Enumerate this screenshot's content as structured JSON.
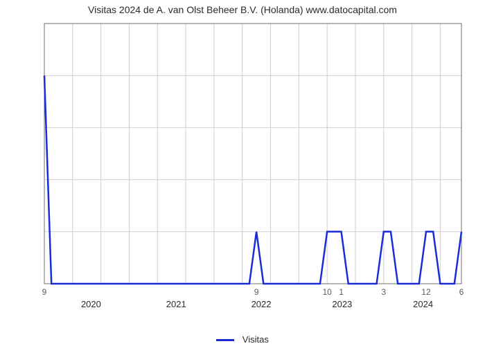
{
  "chart": {
    "type": "line",
    "title": "Visitas 2024 de A. van Olst Beheer B.V. (Holanda) www.datocapital.com",
    "title_fontsize": 14,
    "title_color": "#2a2a2a",
    "background_color": "#ffffff",
    "plot_border_color": "#6d6d6d",
    "grid_color": "#cfcfcf",
    "grid_width": 1,
    "line_color": "#1a2bd8",
    "line_width": 2.5,
    "axis_label_color": "#5a5a5a",
    "axis_label_fontsize": 12,
    "x_year_label_color": "#2a2a2a",
    "x_year_label_fontsize": 13,
    "y": {
      "min": 0,
      "max": 5,
      "ticks": [
        0,
        1,
        2,
        3,
        4,
        5
      ]
    },
    "x": {
      "n": 60,
      "vgrid_step": 4,
      "point_labels": [
        {
          "i": 0,
          "text": "9"
        },
        {
          "i": 30,
          "text": "9"
        },
        {
          "i": 40,
          "text": "10"
        },
        {
          "i": 42,
          "text": "1"
        },
        {
          "i": 48,
          "text": "3"
        },
        {
          "i": 54,
          "text": "12"
        },
        {
          "i": 59,
          "text": "6"
        }
      ],
      "year_labels": [
        {
          "u": 0.112,
          "text": "2020"
        },
        {
          "u": 0.316,
          "text": "2021"
        },
        {
          "u": 0.52,
          "text": "2022"
        },
        {
          "u": 0.714,
          "text": "2023"
        },
        {
          "u": 0.908,
          "text": "2024"
        }
      ]
    },
    "series": [
      {
        "i": 0,
        "v": 4
      },
      {
        "i": 1,
        "v": 0
      },
      {
        "i": 2,
        "v": 0
      },
      {
        "i": 3,
        "v": 0
      },
      {
        "i": 4,
        "v": 0
      },
      {
        "i": 5,
        "v": 0
      },
      {
        "i": 6,
        "v": 0
      },
      {
        "i": 7,
        "v": 0
      },
      {
        "i": 8,
        "v": 0
      },
      {
        "i": 9,
        "v": 0
      },
      {
        "i": 10,
        "v": 0
      },
      {
        "i": 11,
        "v": 0
      },
      {
        "i": 12,
        "v": 0
      },
      {
        "i": 13,
        "v": 0
      },
      {
        "i": 14,
        "v": 0
      },
      {
        "i": 15,
        "v": 0
      },
      {
        "i": 16,
        "v": 0
      },
      {
        "i": 17,
        "v": 0
      },
      {
        "i": 18,
        "v": 0
      },
      {
        "i": 19,
        "v": 0
      },
      {
        "i": 20,
        "v": 0
      },
      {
        "i": 21,
        "v": 0
      },
      {
        "i": 22,
        "v": 0
      },
      {
        "i": 23,
        "v": 0
      },
      {
        "i": 24,
        "v": 0
      },
      {
        "i": 25,
        "v": 0
      },
      {
        "i": 26,
        "v": 0
      },
      {
        "i": 27,
        "v": 0
      },
      {
        "i": 28,
        "v": 0
      },
      {
        "i": 29,
        "v": 0
      },
      {
        "i": 30,
        "v": 1
      },
      {
        "i": 31,
        "v": 0
      },
      {
        "i": 32,
        "v": 0
      },
      {
        "i": 33,
        "v": 0
      },
      {
        "i": 34,
        "v": 0
      },
      {
        "i": 35,
        "v": 0
      },
      {
        "i": 36,
        "v": 0
      },
      {
        "i": 37,
        "v": 0
      },
      {
        "i": 38,
        "v": 0
      },
      {
        "i": 39,
        "v": 0
      },
      {
        "i": 40,
        "v": 1
      },
      {
        "i": 41,
        "v": 1
      },
      {
        "i": 42,
        "v": 1
      },
      {
        "i": 43,
        "v": 0
      },
      {
        "i": 44,
        "v": 0
      },
      {
        "i": 45,
        "v": 0
      },
      {
        "i": 46,
        "v": 0
      },
      {
        "i": 47,
        "v": 0
      },
      {
        "i": 48,
        "v": 1
      },
      {
        "i": 49,
        "v": 1
      },
      {
        "i": 50,
        "v": 0
      },
      {
        "i": 51,
        "v": 0
      },
      {
        "i": 52,
        "v": 0
      },
      {
        "i": 53,
        "v": 0
      },
      {
        "i": 54,
        "v": 1
      },
      {
        "i": 55,
        "v": 1
      },
      {
        "i": 56,
        "v": 0
      },
      {
        "i": 57,
        "v": 0
      },
      {
        "i": 58,
        "v": 0
      },
      {
        "i": 59,
        "v": 1
      }
    ],
    "legend": {
      "label": "Visitas"
    }
  }
}
